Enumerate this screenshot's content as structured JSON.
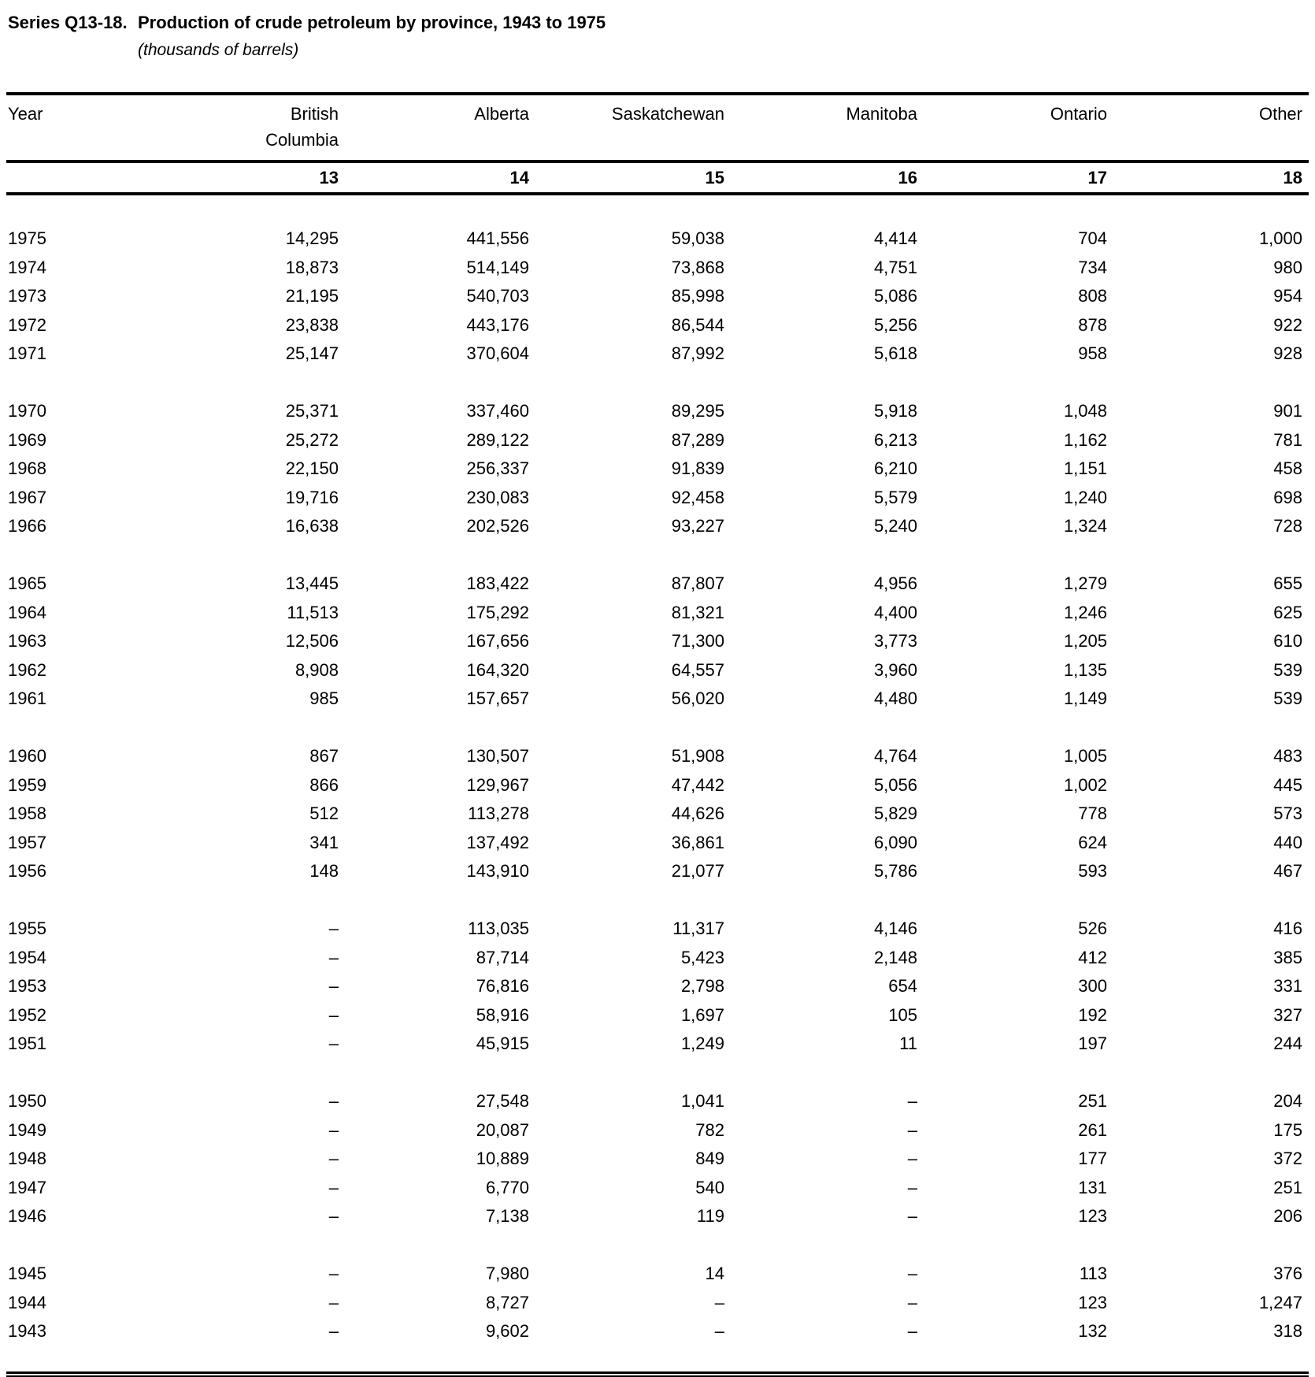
{
  "page": {
    "series_label": "Series Q13-18.",
    "title": "Production of crude petroleum by province, 1943 to 1975",
    "subtitle": "(thousands of barrels)"
  },
  "table": {
    "no_data_symbol": "–",
    "group_size": 5,
    "columns": [
      {
        "key": "year",
        "label": "Year",
        "num": ""
      },
      {
        "key": "british-columbia",
        "label": "British\nColumbia",
        "num": "13"
      },
      {
        "key": "alberta",
        "label": "Alberta",
        "num": "14"
      },
      {
        "key": "saskatchewan",
        "label": "Saskatchewan",
        "num": "15"
      },
      {
        "key": "manitoba",
        "label": "Manitoba",
        "num": "16"
      },
      {
        "key": "ontario",
        "label": "Ontario",
        "num": "17"
      },
      {
        "key": "other",
        "label": "Other",
        "num": "18"
      }
    ],
    "rows": [
      {
        "year": "1975",
        "values": [
          "14,295",
          "441,556",
          "59,038",
          "4,414",
          "704",
          "1,000"
        ]
      },
      {
        "year": "1974",
        "values": [
          "18,873",
          "514,149",
          "73,868",
          "4,751",
          "734",
          "980"
        ]
      },
      {
        "year": "1973",
        "values": [
          "21,195",
          "540,703",
          "85,998",
          "5,086",
          "808",
          "954"
        ]
      },
      {
        "year": "1972",
        "values": [
          "23,838",
          "443,176",
          "86,544",
          "5,256",
          "878",
          "922"
        ]
      },
      {
        "year": "1971",
        "values": [
          "25,147",
          "370,604",
          "87,992",
          "5,618",
          "958",
          "928"
        ]
      },
      {
        "year": "1970",
        "values": [
          "25,371",
          "337,460",
          "89,295",
          "5,918",
          "1,048",
          "901"
        ]
      },
      {
        "year": "1969",
        "values": [
          "25,272",
          "289,122",
          "87,289",
          "6,213",
          "1,162",
          "781"
        ]
      },
      {
        "year": "1968",
        "values": [
          "22,150",
          "256,337",
          "91,839",
          "6,210",
          "1,151",
          "458"
        ]
      },
      {
        "year": "1967",
        "values": [
          "19,716",
          "230,083",
          "92,458",
          "5,579",
          "1,240",
          "698"
        ]
      },
      {
        "year": "1966",
        "values": [
          "16,638",
          "202,526",
          "93,227",
          "5,240",
          "1,324",
          "728"
        ]
      },
      {
        "year": "1965",
        "values": [
          "13,445",
          "183,422",
          "87,807",
          "4,956",
          "1,279",
          "655"
        ]
      },
      {
        "year": "1964",
        "values": [
          "11,513",
          "175,292",
          "81,321",
          "4,400",
          "1,246",
          "625"
        ]
      },
      {
        "year": "1963",
        "values": [
          "12,506",
          "167,656",
          "71,300",
          "3,773",
          "1,205",
          "610"
        ]
      },
      {
        "year": "1962",
        "values": [
          "8,908",
          "164,320",
          "64,557",
          "3,960",
          "1,135",
          "539"
        ]
      },
      {
        "year": "1961",
        "values": [
          "985",
          "157,657",
          "56,020",
          "4,480",
          "1,149",
          "539"
        ]
      },
      {
        "year": "1960",
        "values": [
          "867",
          "130,507",
          "51,908",
          "4,764",
          "1,005",
          "483"
        ]
      },
      {
        "year": "1959",
        "values": [
          "866",
          "129,967",
          "47,442",
          "5,056",
          "1,002",
          "445"
        ]
      },
      {
        "year": "1958",
        "values": [
          "512",
          "113,278",
          "44,626",
          "5,829",
          "778",
          "573"
        ]
      },
      {
        "year": "1957",
        "values": [
          "341",
          "137,492",
          "36,861",
          "6,090",
          "624",
          "440"
        ]
      },
      {
        "year": "1956",
        "values": [
          "148",
          "143,910",
          "21,077",
          "5,786",
          "593",
          "467"
        ]
      },
      {
        "year": "1955",
        "values": [
          "–",
          "113,035",
          "11,317",
          "4,146",
          "526",
          "416"
        ]
      },
      {
        "year": "1954",
        "values": [
          "–",
          "87,714",
          "5,423",
          "2,148",
          "412",
          "385"
        ]
      },
      {
        "year": "1953",
        "values": [
          "–",
          "76,816",
          "2,798",
          "654",
          "300",
          "331"
        ]
      },
      {
        "year": "1952",
        "values": [
          "–",
          "58,916",
          "1,697",
          "105",
          "192",
          "327"
        ]
      },
      {
        "year": "1951",
        "values": [
          "–",
          "45,915",
          "1,249",
          "11",
          "197",
          "244"
        ]
      },
      {
        "year": "1950",
        "values": [
          "–",
          "27,548",
          "1,041",
          "–",
          "251",
          "204"
        ]
      },
      {
        "year": "1949",
        "values": [
          "–",
          "20,087",
          "782",
          "–",
          "261",
          "175"
        ]
      },
      {
        "year": "1948",
        "values": [
          "–",
          "10,889",
          "849",
          "–",
          "177",
          "372"
        ]
      },
      {
        "year": "1947",
        "values": [
          "–",
          "6,770",
          "540",
          "–",
          "131",
          "251"
        ]
      },
      {
        "year": "1946",
        "values": [
          "–",
          "7,138",
          "119",
          "–",
          "123",
          "206"
        ]
      },
      {
        "year": "1945",
        "values": [
          "–",
          "7,980",
          "14",
          "–",
          "113",
          "376"
        ]
      },
      {
        "year": "1944",
        "values": [
          "–",
          "8,727",
          "–",
          "–",
          "123",
          "1,247"
        ]
      },
      {
        "year": "1943",
        "values": [
          "–",
          "9,602",
          "–",
          "–",
          "132",
          "318"
        ]
      }
    ]
  }
}
